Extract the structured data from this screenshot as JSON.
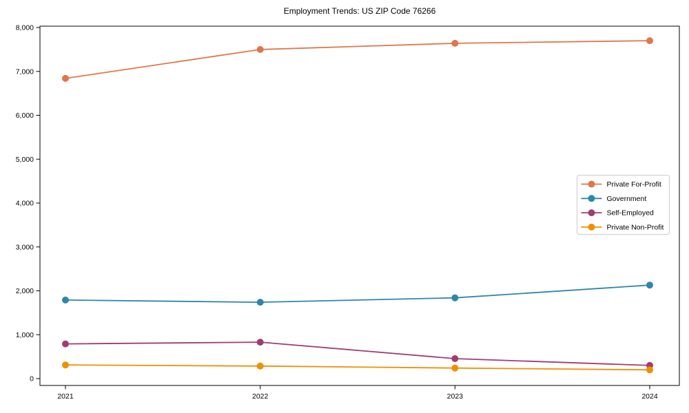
{
  "title": "Employment Trends: US ZIP Code 76266",
  "chart_data": {
    "type": "line",
    "title": "Employment Trends: US ZIP Code 76266",
    "xlabel": "",
    "ylabel": "",
    "grid": false,
    "marker": "circle",
    "legend_position": "center-right",
    "x": [
      2021,
      2022,
      2023,
      2024
    ],
    "x_tick_labels": [
      "2021",
      "2022",
      "2023",
      "2024"
    ],
    "y_ticks": [
      0,
      1000,
      2000,
      3000,
      4000,
      5000,
      6000,
      7000,
      8000
    ],
    "y_tick_labels": [
      "0",
      "1,000",
      "2,000",
      "3,000",
      "4,000",
      "5,000",
      "6,000",
      "7,000",
      "8,000"
    ],
    "ylim": [
      0,
      8000
    ],
    "series": [
      {
        "name": "Private For-Profit",
        "color": "#E0764A",
        "values": [
          6840,
          7500,
          7640,
          7700
        ]
      },
      {
        "name": "Government",
        "color": "#2E86AB",
        "values": [
          1790,
          1740,
          1840,
          2130
        ]
      },
      {
        "name": "Self-Employed",
        "color": "#A23B72",
        "values": [
          790,
          830,
          455,
          300
        ]
      },
      {
        "name": "Private Non-Profit",
        "color": "#F18F01",
        "values": [
          310,
          285,
          240,
          200
        ]
      }
    ],
    "colors": {
      "spine": "#000000",
      "legend_border": "#cccccc",
      "legend_background": "#ffffff"
    }
  }
}
